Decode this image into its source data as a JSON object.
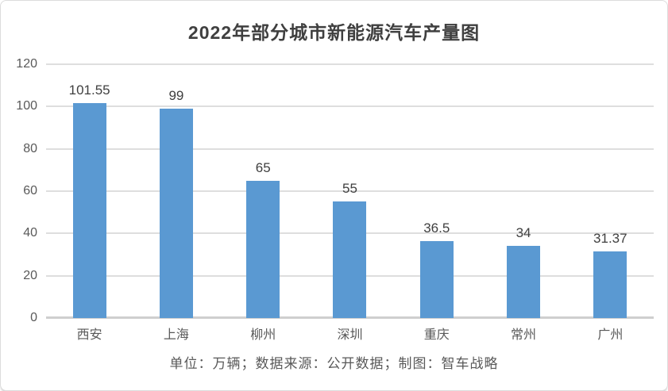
{
  "title": "2022年部分城市新能源汽车产量图",
  "footnote": "单位：万辆；数据来源：公开数据；制图：智车战略",
  "colors": {
    "bar": "#5a99d2",
    "gridline": "#dedede",
    "axis_line": "#cfcfcf",
    "title_text": "#3f3f3f",
    "tick_text": "#595959",
    "data_label_text": "#404040",
    "card_background": "#ffffff",
    "card_border": "#dcdcdc"
  },
  "chart_data": {
    "type": "bar",
    "title": "2022年部分城市新能源汽车产量图",
    "categories": [
      "西安",
      "上海",
      "柳州",
      "深圳",
      "重庆",
      "常州",
      "广州"
    ],
    "values": [
      101.55,
      99,
      65,
      55,
      36.5,
      34,
      31.37
    ],
    "data_labels": [
      "101.55",
      "99",
      "65",
      "55",
      "36.5",
      "34",
      "31.37"
    ],
    "xlabel": "",
    "ylabel": "",
    "ylim": [
      0,
      120
    ],
    "yticks": [
      0,
      20,
      40,
      60,
      80,
      100,
      120
    ],
    "grid": true,
    "legend": false,
    "bar_color": "#5a99d2",
    "footnote": "单位：万辆；数据来源：公开数据；制图：智车战略"
  }
}
